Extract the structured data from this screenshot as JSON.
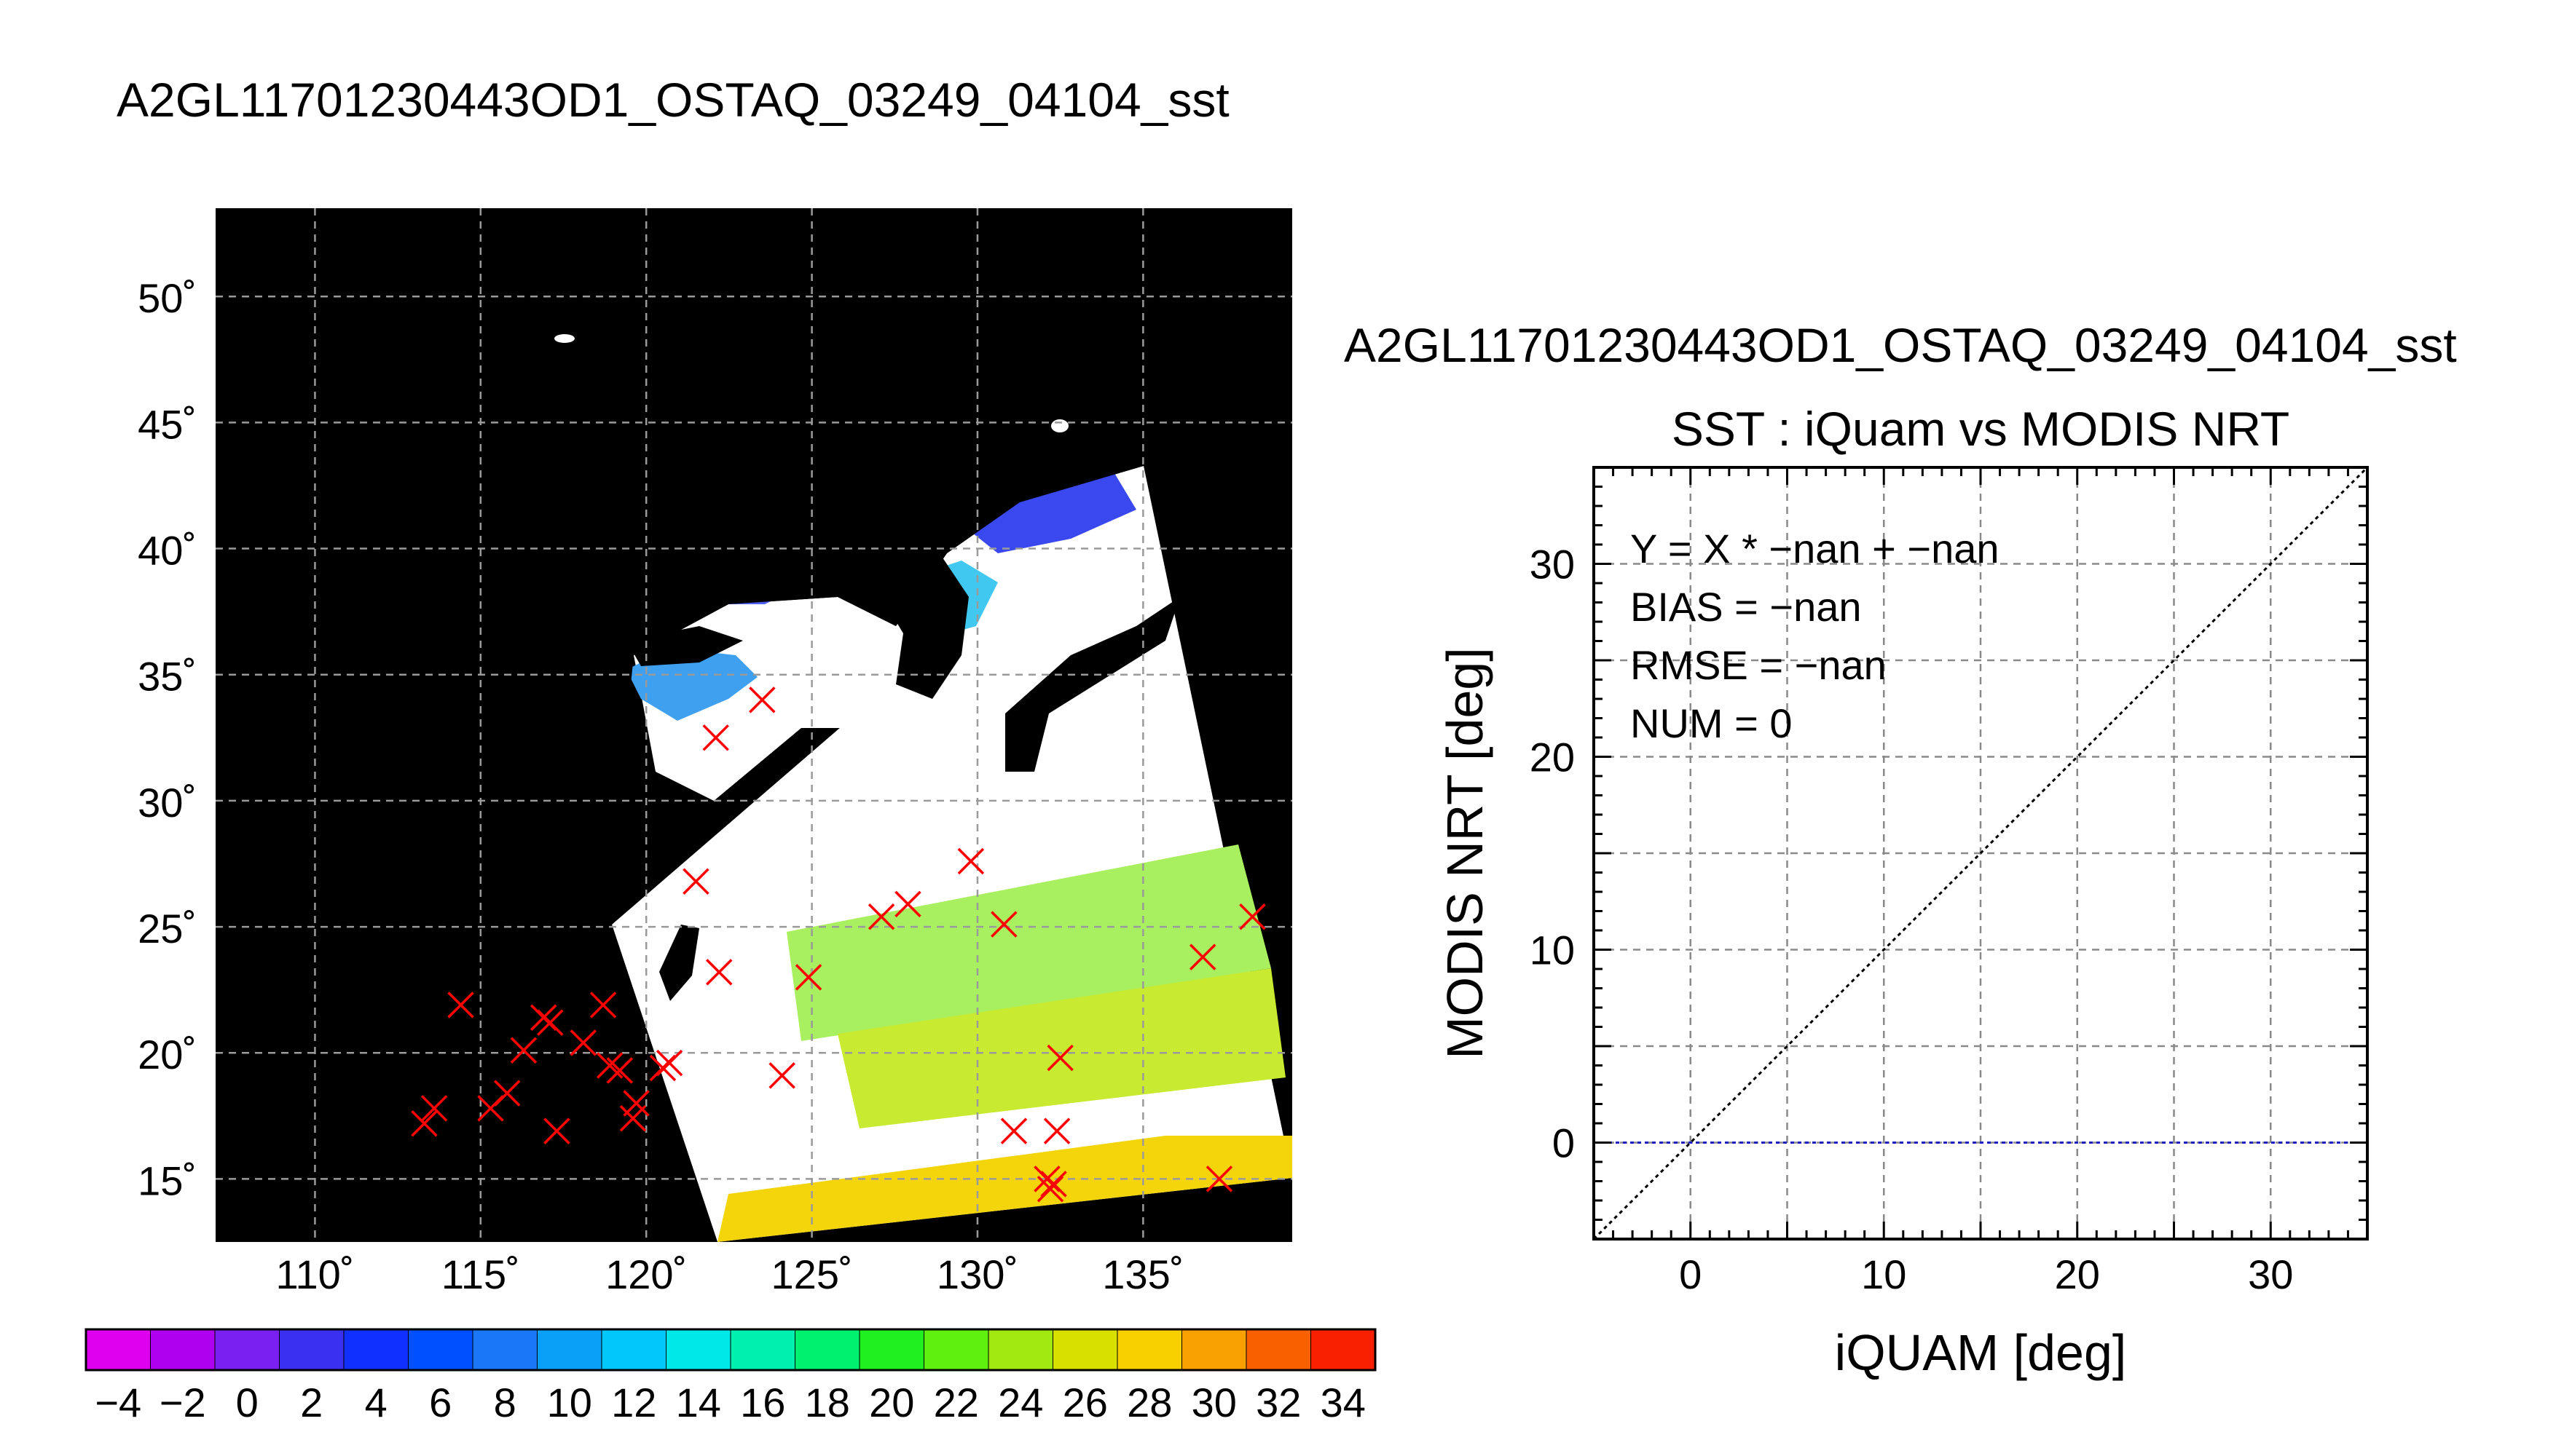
{
  "figure": {
    "title": "A2GL11701230443OD1_OSTAQ_03249_04104_sst"
  },
  "chart_data": [
    {
      "type": "map",
      "panel": "sst-map",
      "title": "A2GL11701230443OD1_OSTAQ_03249_04104_sst",
      "lon_range": [
        107,
        139.5
      ],
      "lat_range": [
        12.5,
        53.5
      ],
      "lon_ticks": [
        "110˚",
        "115˚",
        "120˚",
        "125˚",
        "130˚",
        "135˚"
      ],
      "lon_tick_values": [
        110,
        115,
        120,
        125,
        130,
        135
      ],
      "lat_ticks": [
        "50˚",
        "45˚",
        "40˚",
        "35˚",
        "30˚",
        "25˚",
        "20˚",
        "15˚"
      ],
      "lat_tick_values": [
        50,
        45,
        40,
        35,
        30,
        25,
        20,
        15
      ],
      "grid": true,
      "background_color": "#000000",
      "markers": {
        "symbol": "x",
        "color": "#ff0000",
        "points": [
          [
            113.3,
            17.2
          ],
          [
            113.6,
            17.8
          ],
          [
            114.4,
            21.9
          ],
          [
            115.3,
            17.8
          ],
          [
            115.8,
            18.4
          ],
          [
            116.3,
            20.1
          ],
          [
            116.9,
            21.4
          ],
          [
            117.1,
            21.2
          ],
          [
            117.3,
            16.9
          ],
          [
            118.1,
            20.4
          ],
          [
            118.7,
            21.9
          ],
          [
            118.9,
            19.5
          ],
          [
            119.2,
            19.3
          ],
          [
            119.6,
            17.4
          ],
          [
            119.7,
            18.0
          ],
          [
            120.5,
            19.4
          ],
          [
            120.7,
            19.6
          ],
          [
            121.5,
            26.8
          ],
          [
            122.1,
            32.5
          ],
          [
            122.2,
            23.2
          ],
          [
            123.5,
            34.0
          ],
          [
            124.1,
            19.1
          ],
          [
            124.9,
            23.0
          ],
          [
            127.1,
            25.4
          ],
          [
            127.9,
            25.9
          ],
          [
            129.8,
            27.6
          ],
          [
            130.8,
            25.1
          ],
          [
            131.1,
            16.9
          ],
          [
            132.1,
            15.0
          ],
          [
            132.2,
            14.6
          ],
          [
            132.3,
            14.8
          ],
          [
            132.4,
            16.9
          ],
          [
            132.5,
            19.8
          ],
          [
            136.8,
            23.8
          ],
          [
            137.3,
            15.0
          ],
          [
            138.3,
            25.4
          ]
        ]
      }
    },
    {
      "type": "colorbar",
      "panel": "colorbar",
      "range": [
        -5,
        35
      ],
      "tick_labels": [
        "−4",
        "−2",
        "0",
        "2",
        "4",
        "6",
        "8",
        "10",
        "12",
        "14",
        "16",
        "18",
        "20",
        "22",
        "24",
        "26",
        "28",
        "30",
        "32",
        "34"
      ],
      "tick_values": [
        -4,
        -2,
        0,
        2,
        4,
        6,
        8,
        10,
        12,
        14,
        16,
        18,
        20,
        22,
        24,
        26,
        28,
        30,
        32,
        34
      ],
      "colors": [
        "#e000f0",
        "#b000f0",
        "#7a20f0",
        "#3a30f0",
        "#1030ff",
        "#0050ff",
        "#1a78f8",
        "#0aa0f8",
        "#00c8f8",
        "#00e8e8",
        "#00f0b0",
        "#00f070",
        "#20f020",
        "#60f010",
        "#a0e810",
        "#d8e000",
        "#f8d000",
        "#f8a000",
        "#f86000",
        "#f82000"
      ]
    },
    {
      "type": "scatter",
      "panel": "sst-scatter",
      "title_line1": "A2GL11701230443OD1_OSTAQ_03249_04104_sst",
      "title": "SST : iQuam vs MODIS NRT",
      "xlabel": "iQUAM [deg]",
      "ylabel": "MODIS NRT [deg]",
      "xlim": [
        -5,
        35
      ],
      "ylim": [
        -5,
        35
      ],
      "xticks": [
        0,
        10,
        20,
        30
      ],
      "yticks": [
        0,
        10,
        20,
        30
      ],
      "grid": true,
      "series": [],
      "reference_lines": [
        {
          "kind": "one-to-one",
          "style": "dotted",
          "color": "#000000"
        },
        {
          "kind": "horizontal",
          "y": 0,
          "style": "dotted",
          "color": "#2020c0"
        }
      ],
      "annotations": [
        "Y = X * −nan + −nan",
        "BIAS = −nan",
        "RMSE = −nan",
        "NUM = 0"
      ]
    }
  ]
}
